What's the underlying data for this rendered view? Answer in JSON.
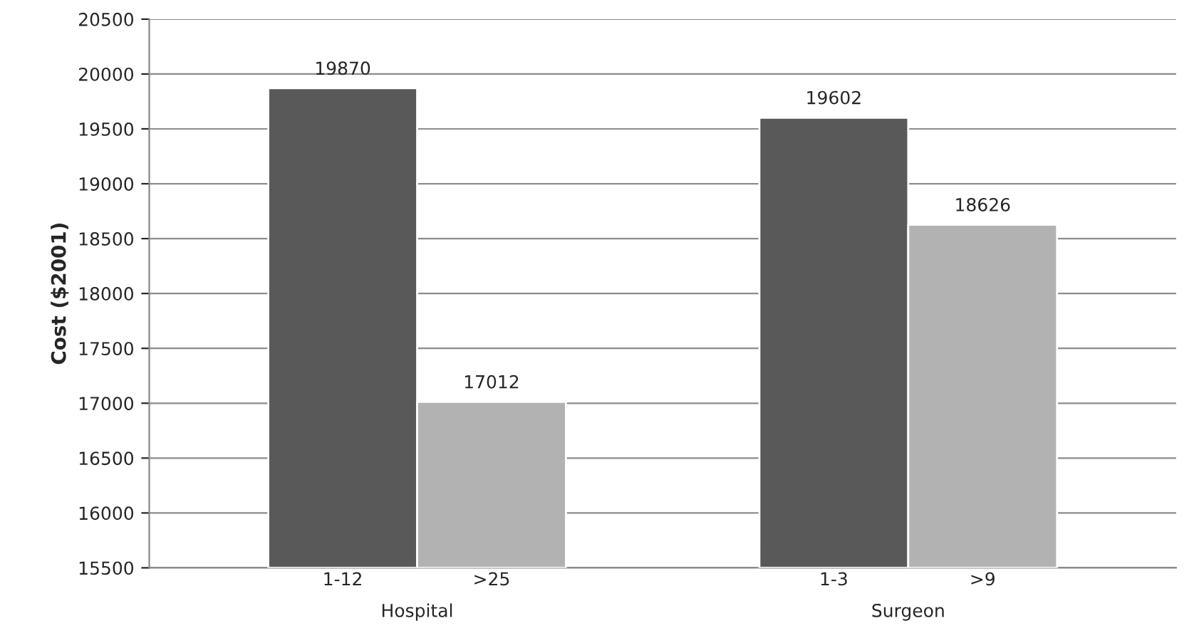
{
  "chart_data": {
    "type": "bar",
    "ylabel": "Cost ($2001)",
    "categories": [
      "1-12",
      ">25",
      "1-3",
      ">9"
    ],
    "values": [
      19870,
      17012,
      19602,
      18626
    ],
    "colors": [
      "#595959",
      "#b2b2b2",
      "#595959",
      "#b2b2b2"
    ],
    "ylim": [
      15500,
      20500
    ],
    "yticks": [
      15500,
      16000,
      16500,
      17000,
      17500,
      18000,
      18500,
      19000,
      19500,
      20000,
      20500
    ],
    "grid": "y",
    "data_labels": true,
    "annotations": [
      "Hospital",
      "Surgeon"
    ]
  }
}
